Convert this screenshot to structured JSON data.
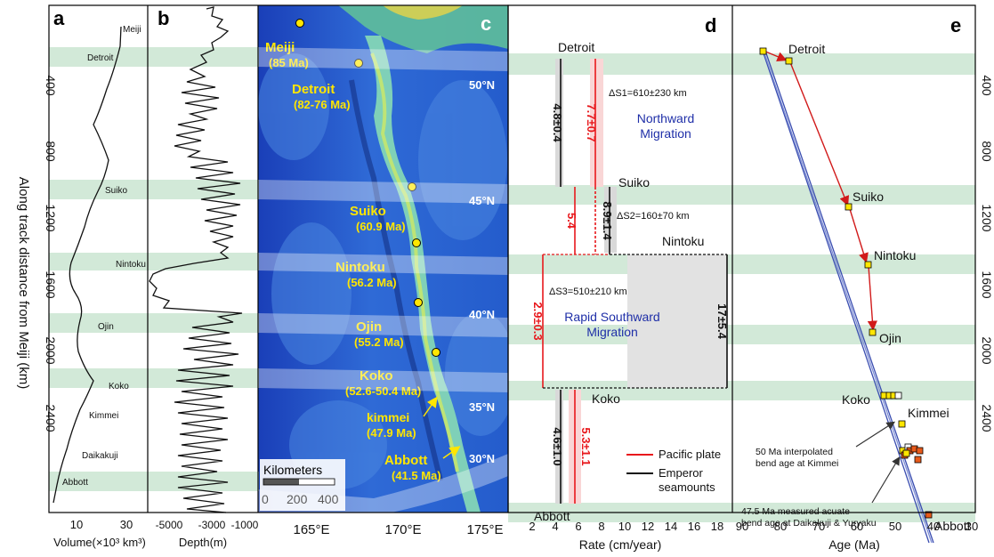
{
  "y_axis": {
    "label": "Along track distance from Meiji  (km)",
    "ticks": [
      "400",
      "800",
      "1200",
      "1600",
      "2000",
      "2400"
    ]
  },
  "bands": [
    {
      "name": "Detroit"
    },
    {
      "name": "Suiko"
    },
    {
      "name": "Nintoku"
    },
    {
      "name": "Ojin"
    },
    {
      "name": "Koko"
    },
    {
      "name": "Abbott"
    }
  ],
  "panel_a": {
    "letter": "a",
    "xlabel": "Volume(×10³ km³)",
    "xticks": [
      "10",
      "30"
    ],
    "labels": [
      "Meiji",
      "Detroit",
      "Suiko",
      "Nintoku",
      "Ojin",
      "Koko",
      "Kimmei",
      "Daikakuji",
      "Abbott"
    ]
  },
  "panel_b": {
    "letter": "b",
    "xlabel": "Depth(m)",
    "xticks": [
      "-5000",
      "-3000",
      "-1000"
    ]
  },
  "panel_c": {
    "letter": "c",
    "xticks": [
      "165°E",
      "170°E",
      "175°E"
    ],
    "lat_labels": [
      "50°N",
      "45°N",
      "40°N",
      "35°N",
      "30°N"
    ],
    "seamounts": [
      {
        "name": "Meiji",
        "age": "(85 Ma)"
      },
      {
        "name": "Detroit",
        "age": "(82-76 Ma)"
      },
      {
        "name": "Suiko",
        "age": "(60.9 Ma)"
      },
      {
        "name": "Nintoku",
        "age": "(56.2 Ma)"
      },
      {
        "name": "Ojin",
        "age": "(55.2 Ma)"
      },
      {
        "name": "Koko",
        "age": "(52.6-50.4 Ma)"
      },
      {
        "name": "kimmei",
        "age": "(47.9 Ma)"
      },
      {
        "name": "Abbott",
        "age": "(41.5 Ma)"
      }
    ],
    "scale_title": "Kilometers",
    "scale_ticks": [
      "0",
      "200",
      "400"
    ]
  },
  "panel_d": {
    "letter": "d",
    "xlabel": "Rate (cm/year)",
    "xticks": [
      "2",
      "4",
      "6",
      "8",
      "10",
      "12",
      "14",
      "16",
      "18"
    ],
    "stations": [
      "Detroit",
      "Suiko",
      "Nintoku",
      "Koko",
      "Abbott"
    ],
    "rates": {
      "emperor_1": "4.8±0.4",
      "pacific_1": "7.7±0.7",
      "pacific_2": "5.4",
      "emperor_2": "8.9±1.4",
      "pacific_3": "2.9±0.3",
      "emperor_3": "17±5.4",
      "emperor_4": "4.6±1.0",
      "pacific_4": "5.3±1.1"
    },
    "ds1": "ΔS1=610±230 km",
    "ds2": "ΔS2=160±70 km",
    "ds3": "ΔS3=510±210 km",
    "north_line1": "Northward",
    "north_line2": "Migration",
    "south_line1": "Rapid Southward",
    "south_line2": "Migration",
    "legend": [
      "Pacific plate",
      "Emperor",
      "seamounts"
    ],
    "colors": {
      "pacific": "#e8181c",
      "emperor": "#111111",
      "migration_text": "#1f2fa8"
    }
  },
  "panel_e": {
    "letter": "e",
    "xlabel": "Age (Ma)",
    "xticks": [
      "90",
      "80",
      "70",
      "60",
      "50",
      "40",
      "30"
    ],
    "labels": [
      "Detroit",
      "Suiko",
      "Nintoku",
      "Ojin",
      "Koko",
      "Kimmei",
      "Abbott"
    ],
    "note1_lines": [
      "50 Ma interpolated",
      "bend age at Kimmei"
    ],
    "note2_lines": [
      "47.5 Ma measured acuate",
      "bend age at Daikakuji & Yuryaku"
    ],
    "colors": {
      "arrow": "#d11a1a",
      "point": "#ffe600",
      "measured": "#e85a1a",
      "trend": "#3a4db0"
    }
  }
}
